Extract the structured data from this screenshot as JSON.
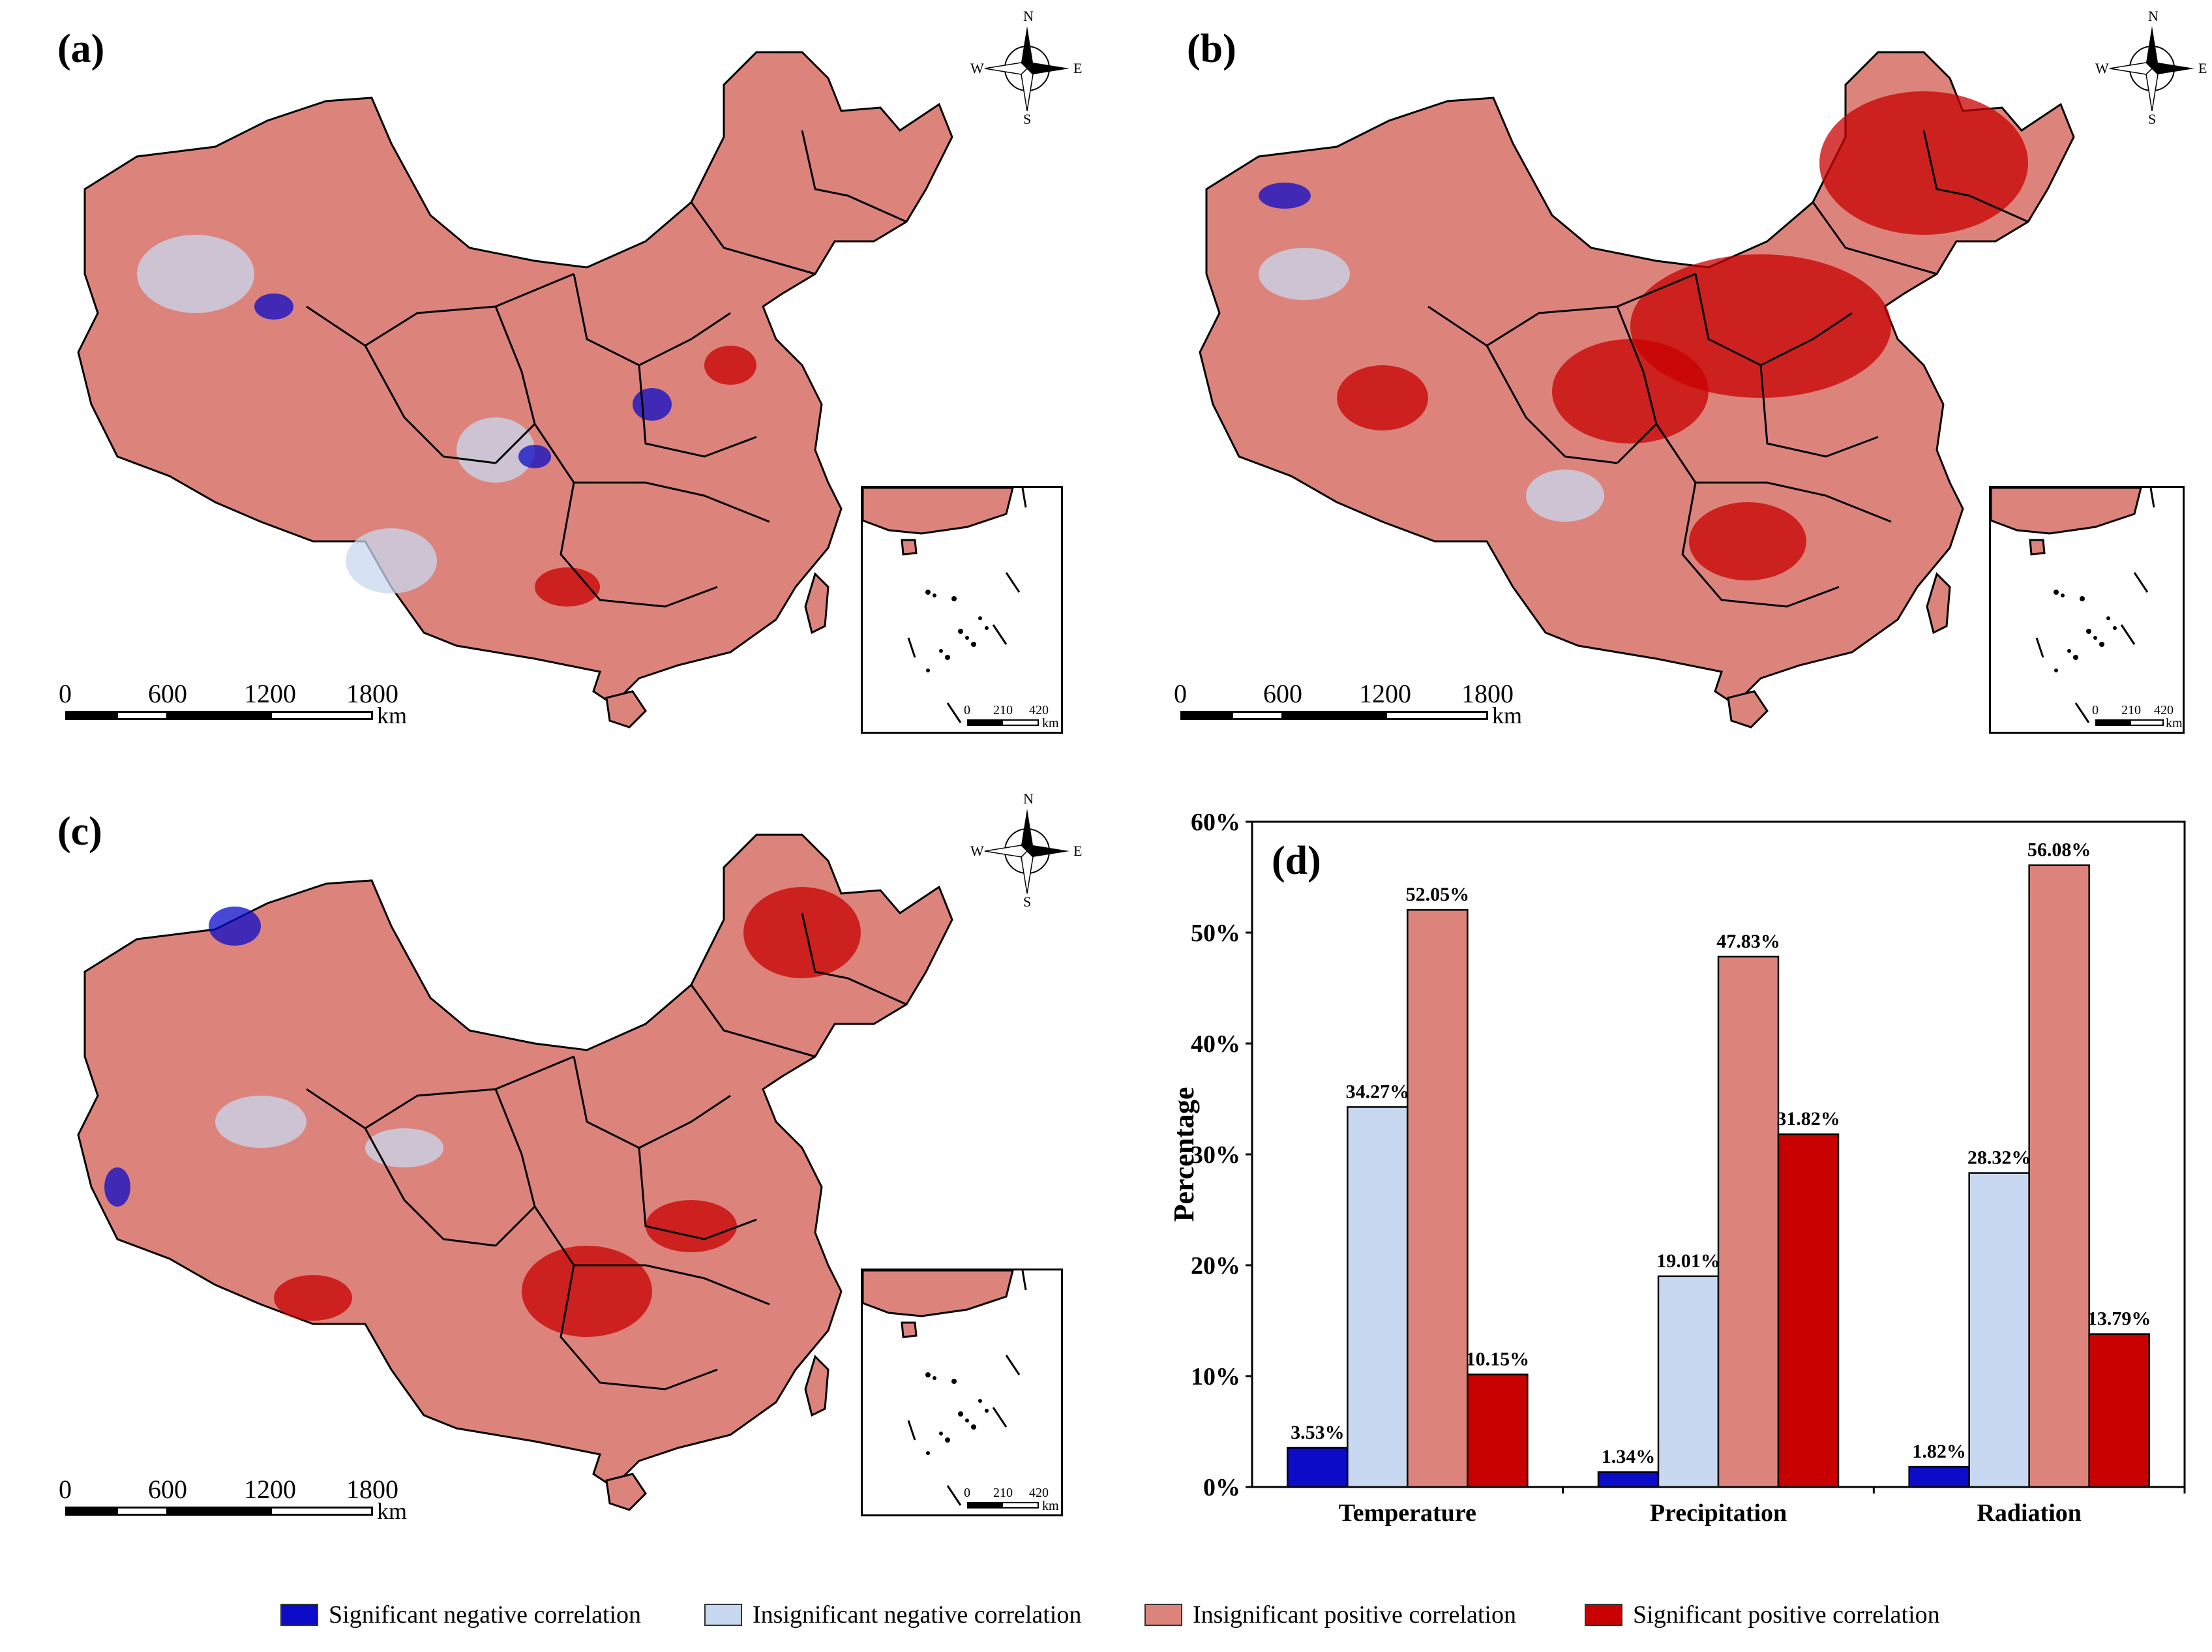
{
  "panels": {
    "a": {
      "label": "(a)"
    },
    "b": {
      "label": "(b)"
    },
    "c": {
      "label": "(c)"
    }
  },
  "compass": {
    "n": "N",
    "s": "S",
    "e": "E",
    "w": "W"
  },
  "scalebar": {
    "ticks": [
      "0",
      "600",
      "1200",
      "1800"
    ],
    "unit": "km"
  },
  "inset_scalebar": {
    "ticks": [
      "0",
      "210",
      "420"
    ],
    "unit": "km"
  },
  "colors": {
    "sig_neg": "#0b0bc8",
    "insig_neg": "#c8d8f0",
    "insig_pos": "#dc847c",
    "sig_pos": "#c80000"
  },
  "legend": [
    {
      "label": "Significant negative correlation",
      "color": "#0b0bc8"
    },
    {
      "label": "Insignificant negative correlation",
      "color": "#c8d8f0"
    },
    {
      "label": "Insignificant positive correlation",
      "color": "#dc847c"
    },
    {
      "label": "Significant positive correlation",
      "color": "#c80000"
    }
  ],
  "chart_data": {
    "type": "bar",
    "panel_label": "(d)",
    "categories": [
      "Temperature",
      "Precipitation",
      "Radiation"
    ],
    "series": [
      {
        "name": "Significant negative correlation",
        "values": [
          3.53,
          1.34,
          1.82
        ],
        "labels": [
          "3.53%",
          "1.34%",
          "1.82%"
        ]
      },
      {
        "name": "Insignificant negative correlation",
        "values": [
          34.27,
          19.01,
          28.32
        ],
        "labels": [
          "34.27%",
          "19.01%",
          "28.32%"
        ]
      },
      {
        "name": "Insignificant positive correlation",
        "values": [
          52.05,
          47.83,
          56.08
        ],
        "labels": [
          "52.05%",
          "47.83%",
          "56.08%"
        ]
      },
      {
        "name": "Significant positive correlation",
        "values": [
          10.15,
          31.82,
          13.79
        ],
        "labels": [
          "10.15%",
          "31.82%",
          "13.79%"
        ]
      }
    ],
    "ylabel": "Percentage",
    "xlabel": "",
    "ylim": [
      0,
      60
    ],
    "yticks": [
      "0%",
      "10%",
      "20%",
      "30%",
      "40%",
      "50%",
      "60%"
    ],
    "grid": false,
    "legend_position": "bottom"
  }
}
